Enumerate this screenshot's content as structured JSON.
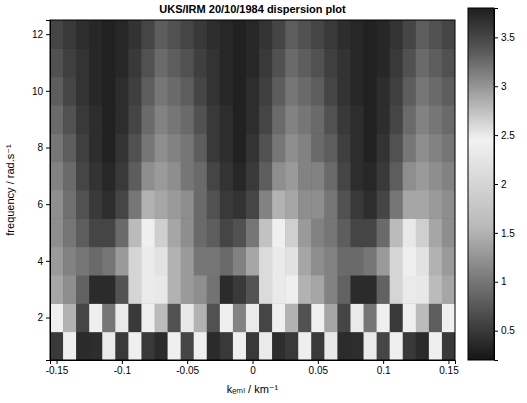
{
  "chart_data": {
    "type": "heatmap",
    "title": "UKS/IRM 20/10/1984 dispersion plot",
    "xlabel": "kₑₘₗ / km⁻¹",
    "ylabel": "frequency / rad.s⁻¹",
    "x": [
      -0.15,
      -0.14,
      -0.13,
      -0.12,
      -0.11,
      -0.1,
      -0.09,
      -0.08,
      -0.07,
      -0.06,
      -0.05,
      -0.04,
      -0.03,
      -0.02,
      -0.01,
      0,
      0.01,
      0.02,
      0.03,
      0.04,
      0.05,
      0.06,
      0.07,
      0.08,
      0.09,
      0.1,
      0.11,
      0.12,
      0.13,
      0.14,
      0.15
    ],
    "y": [
      1,
      2,
      3,
      4,
      5,
      6,
      7,
      8,
      9,
      10,
      11,
      12
    ],
    "z": [
      [
        3.6,
        2.4,
        3.7,
        0.4,
        2.5,
        3.6,
        2.4,
        0.5,
        3.7,
        2.4,
        3.5,
        2.4,
        3.7,
        0.5,
        2.4,
        3.6,
        2.5,
        0.4,
        3.6,
        2.4,
        3.6,
        2.3,
        3.7,
        0.4,
        2.5,
        3.5,
        2.4,
        0.5,
        3.7,
        2.4,
        3.6
      ],
      [
        2.4,
        1.5,
        0.6,
        2.4,
        1.0,
        2.5,
        0.5,
        2.4,
        1.6,
        0.7,
        2.3,
        1.5,
        0.7,
        2.4,
        1.1,
        2.5,
        0.6,
        2.4,
        1.5,
        0.7,
        2.4,
        1.4,
        0.6,
        2.5,
        1.0,
        2.4,
        0.5,
        2.4,
        1.6,
        0.8,
        2.4
      ],
      [
        1.4,
        1.2,
        3.3,
        3.7,
        3.7,
        3.4,
        2.0,
        2.5,
        2.3,
        1.5,
        1.3,
        1.2,
        3.2,
        3.7,
        3.6,
        3.4,
        2.1,
        2.5,
        2.4,
        1.5,
        1.4,
        1.1,
        3.3,
        3.7,
        3.7,
        3.3,
        2.0,
        2.5,
        2.3,
        1.6,
        1.4
      ],
      [
        1.3,
        1.1,
        1.0,
        0.9,
        1.0,
        1.3,
        2.0,
        2.5,
        2.2,
        1.5,
        1.3,
        1.0,
        1.0,
        0.9,
        1.1,
        1.4,
        2.1,
        2.5,
        2.2,
        1.4,
        1.2,
        1.1,
        0.9,
        0.9,
        1.0,
        1.3,
        2.0,
        2.4,
        2.2,
        1.5,
        1.3
      ],
      [
        1.2,
        1.0,
        0.8,
        0.6,
        0.6,
        0.9,
        1.6,
        2.4,
        1.9,
        1.4,
        1.2,
        0.9,
        0.8,
        0.6,
        0.7,
        1.0,
        1.7,
        2.4,
        1.9,
        1.3,
        1.1,
        1.0,
        0.8,
        0.6,
        0.6,
        0.9,
        1.6,
        2.3,
        1.9,
        1.4,
        1.2
      ],
      [
        1.2,
        0.95,
        0.7,
        0.5,
        0.4,
        0.6,
        1.0,
        1.5,
        1.4,
        1.3,
        1.2,
        0.9,
        0.7,
        0.5,
        0.45,
        0.6,
        1.1,
        1.5,
        1.4,
        1.2,
        1.2,
        1.0,
        0.7,
        0.5,
        0.4,
        0.6,
        1.0,
        1.4,
        1.4,
        1.3,
        1.2
      ],
      [
        1.1,
        0.9,
        0.6,
        0.45,
        0.35,
        0.5,
        0.8,
        1.2,
        1.3,
        1.2,
        1.0,
        0.9,
        0.6,
        0.45,
        0.35,
        0.5,
        0.8,
        1.2,
        1.3,
        1.1,
        1.1,
        0.9,
        0.6,
        0.4,
        0.35,
        0.5,
        0.8,
        1.2,
        1.3,
        1.2,
        1.1
      ],
      [
        1.0,
        0.8,
        0.55,
        0.4,
        0.3,
        0.45,
        0.7,
        1.0,
        1.2,
        1.1,
        1.0,
        0.8,
        0.5,
        0.4,
        0.3,
        0.45,
        0.7,
        1.0,
        1.2,
        1.1,
        0.9,
        0.8,
        0.55,
        0.4,
        0.3,
        0.45,
        0.7,
        1.0,
        1.2,
        1.1,
        1.0
      ],
      [
        0.9,
        0.7,
        0.5,
        0.4,
        0.3,
        0.4,
        0.6,
        0.9,
        1.1,
        1.0,
        0.9,
        0.7,
        0.5,
        0.4,
        0.3,
        0.4,
        0.6,
        0.9,
        1.1,
        1.0,
        0.9,
        0.7,
        0.5,
        0.4,
        0.3,
        0.4,
        0.6,
        0.9,
        1.1,
        1.0,
        0.9
      ],
      [
        0.8,
        0.6,
        0.45,
        0.35,
        0.3,
        0.4,
        0.55,
        0.8,
        1.0,
        0.9,
        0.8,
        0.6,
        0.45,
        0.35,
        0.3,
        0.4,
        0.55,
        0.8,
        1.0,
        0.9,
        0.8,
        0.6,
        0.45,
        0.35,
        0.3,
        0.4,
        0.55,
        0.8,
        1.0,
        0.9,
        0.8
      ],
      [
        0.7,
        0.55,
        0.45,
        0.35,
        0.3,
        0.35,
        0.5,
        0.7,
        0.9,
        0.8,
        0.7,
        0.55,
        0.45,
        0.35,
        0.3,
        0.35,
        0.5,
        0.7,
        0.9,
        0.8,
        0.7,
        0.55,
        0.45,
        0.35,
        0.3,
        0.35,
        0.5,
        0.7,
        0.9,
        0.8,
        0.7
      ],
      [
        0.6,
        0.5,
        0.4,
        0.35,
        0.3,
        0.35,
        0.45,
        0.6,
        0.8,
        0.7,
        0.6,
        0.5,
        0.4,
        0.35,
        0.3,
        0.35,
        0.45,
        0.6,
        0.8,
        0.7,
        0.6,
        0.5,
        0.4,
        0.35,
        0.3,
        0.35,
        0.45,
        0.6,
        0.8,
        0.7,
        0.6
      ]
    ],
    "xlim": [
      -0.155,
      0.155
    ],
    "ylim": [
      0.5,
      12.5
    ],
    "xticks": [
      -0.15,
      -0.1,
      -0.05,
      0,
      0.05,
      0.1,
      0.15
    ],
    "yticks": [
      2,
      4,
      6,
      8,
      10,
      12
    ],
    "colorbar_range": [
      0.2,
      3.8
    ],
    "colorbar_ticks": [
      0.5,
      1,
      1.5,
      2,
      2.5,
      3,
      3.5
    ]
  }
}
